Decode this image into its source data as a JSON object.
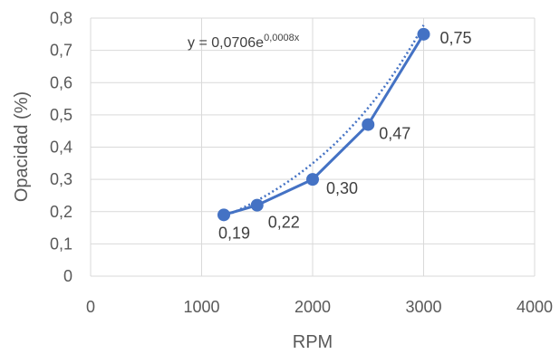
{
  "chart_data": {
    "type": "scatter",
    "x": [
      1200,
      1500,
      2000,
      2500,
      3000
    ],
    "y": [
      0.19,
      0.22,
      0.3,
      0.47,
      0.75
    ],
    "data_labels": [
      "0,19",
      "0,22",
      "0,30",
      "0,47",
      "0,75"
    ],
    "xlabel": "RPM",
    "ylabel": "Opacidad (%)",
    "xlim": [
      0,
      4000
    ],
    "ylim": [
      0,
      0.8
    ],
    "x_ticks": [
      0,
      1000,
      2000,
      3000,
      4000
    ],
    "y_ticks": [
      0,
      0.1,
      0.2,
      0.3,
      0.4,
      0.5,
      0.6,
      0.7,
      0.8
    ],
    "x_tick_labels": [
      "0",
      "1000",
      "2000",
      "3000",
      "4000"
    ],
    "y_tick_labels": [
      "0",
      "0,1",
      "0,2",
      "0,3",
      "0,4",
      "0,5",
      "0,6",
      "0,7",
      "0,8"
    ],
    "trendline": {
      "type": "exponential",
      "equation_base": "y = 0,0706e",
      "equation_exponent": "0,0008x",
      "a": 0.0706,
      "b": 0.0008
    },
    "grid": true,
    "series_color": "#4472c4",
    "grid_color": "#d9d9d9"
  }
}
